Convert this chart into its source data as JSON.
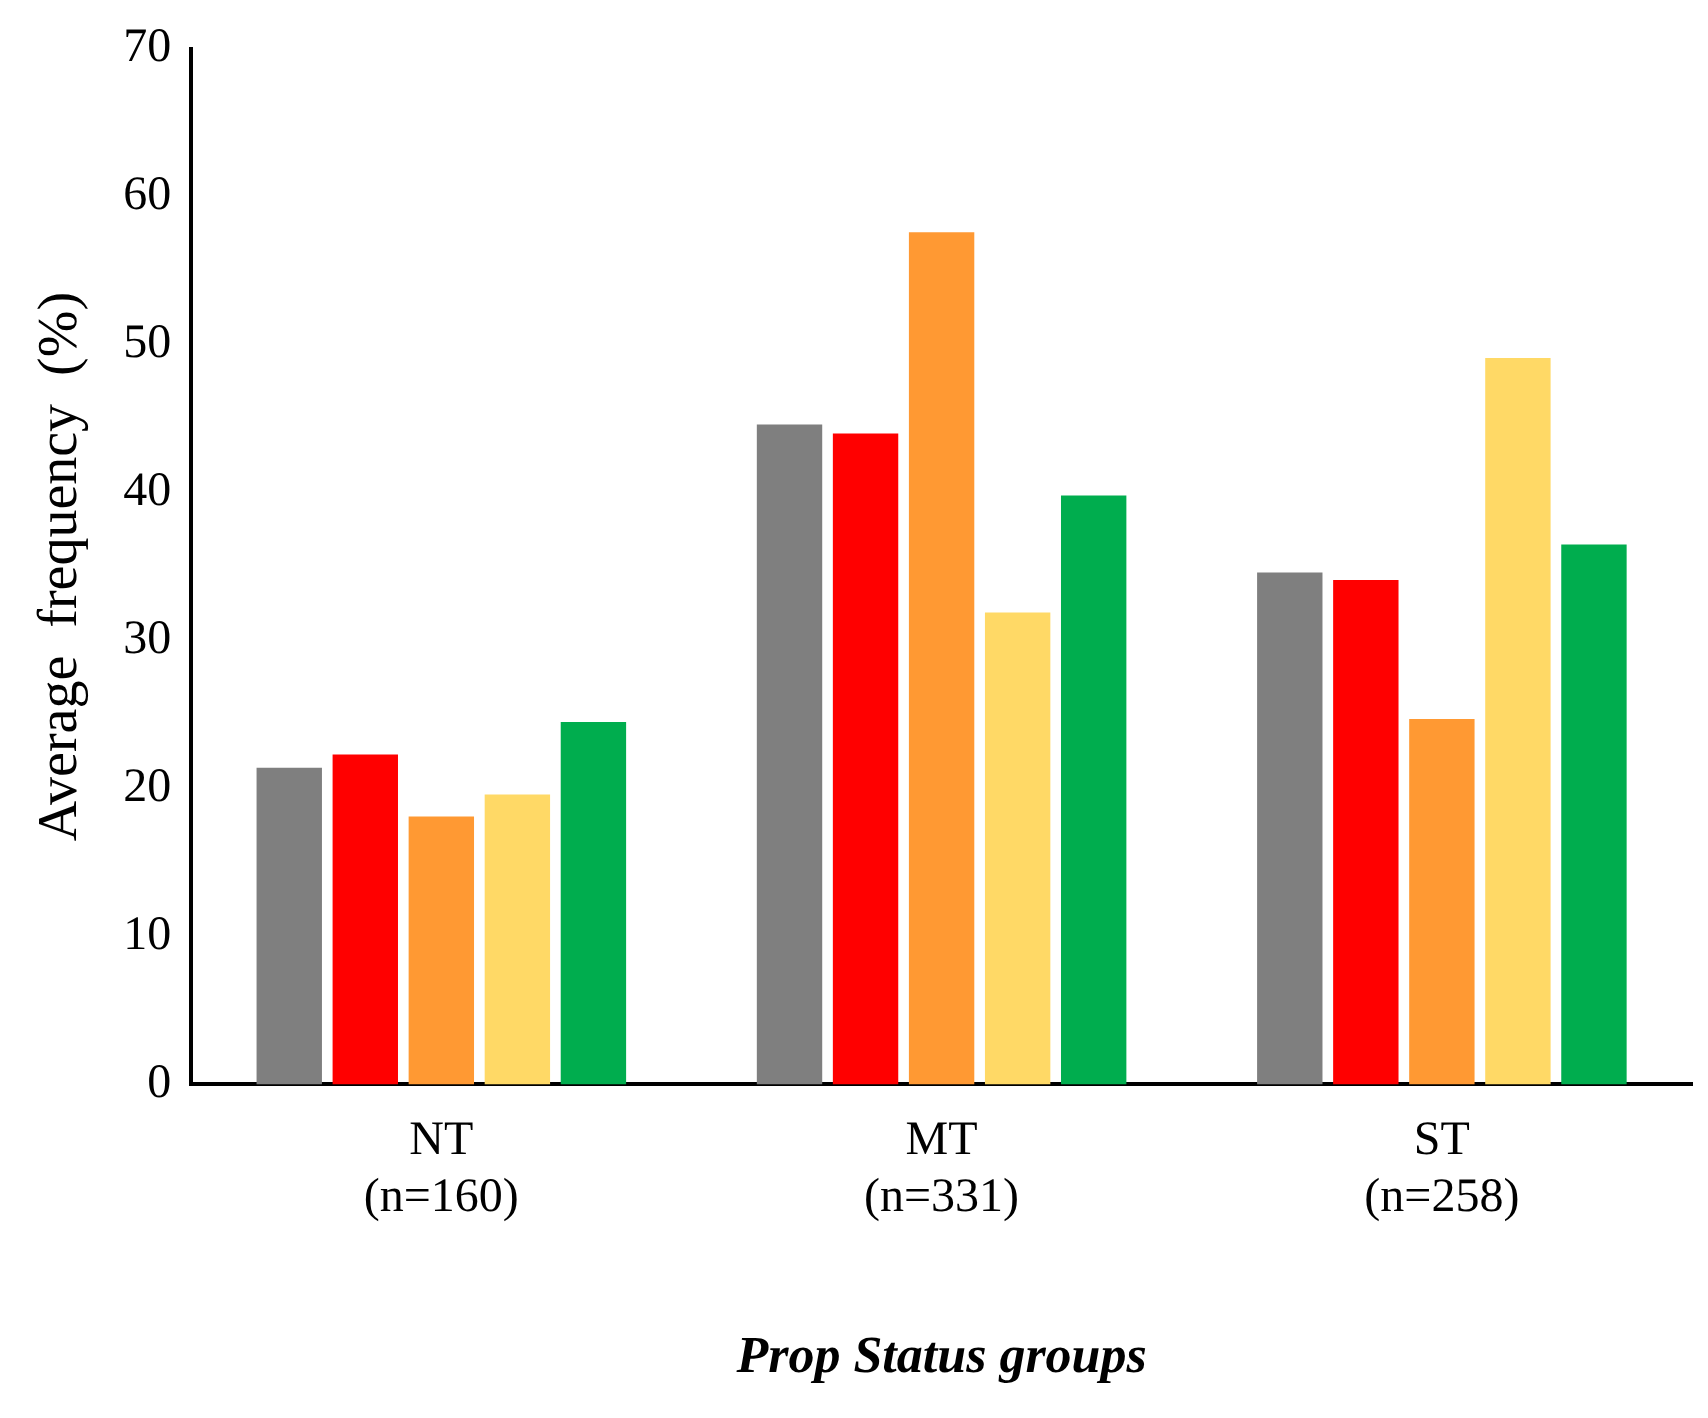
{
  "chart_data": {
    "type": "bar",
    "xlabel": "Prop Status groups",
    "ylabel": "Average  frequency  (%)",
    "categories": [
      "NT\n(n=160)",
      "MT\n(n=331)",
      "ST\n(n=258)"
    ],
    "series": [
      {
        "color": "#7f7f7f",
        "values": [
          21.4,
          44.6,
          34.6
        ]
      },
      {
        "color": "#ff0000",
        "values": [
          22.3,
          44.0,
          34.1
        ]
      },
      {
        "color": "#ff9933",
        "values": [
          18.1,
          57.6,
          24.7
        ]
      },
      {
        "color": "#ffd966",
        "values": [
          19.6,
          31.9,
          49.1
        ]
      },
      {
        "color": "#00ad4e",
        "values": [
          24.5,
          39.8,
          36.5
        ]
      }
    ],
    "ylim": [
      0,
      70
    ],
    "yticks": [
      0,
      10,
      20,
      30,
      40,
      50,
      60,
      70
    ],
    "grid": false,
    "legend": false
  }
}
